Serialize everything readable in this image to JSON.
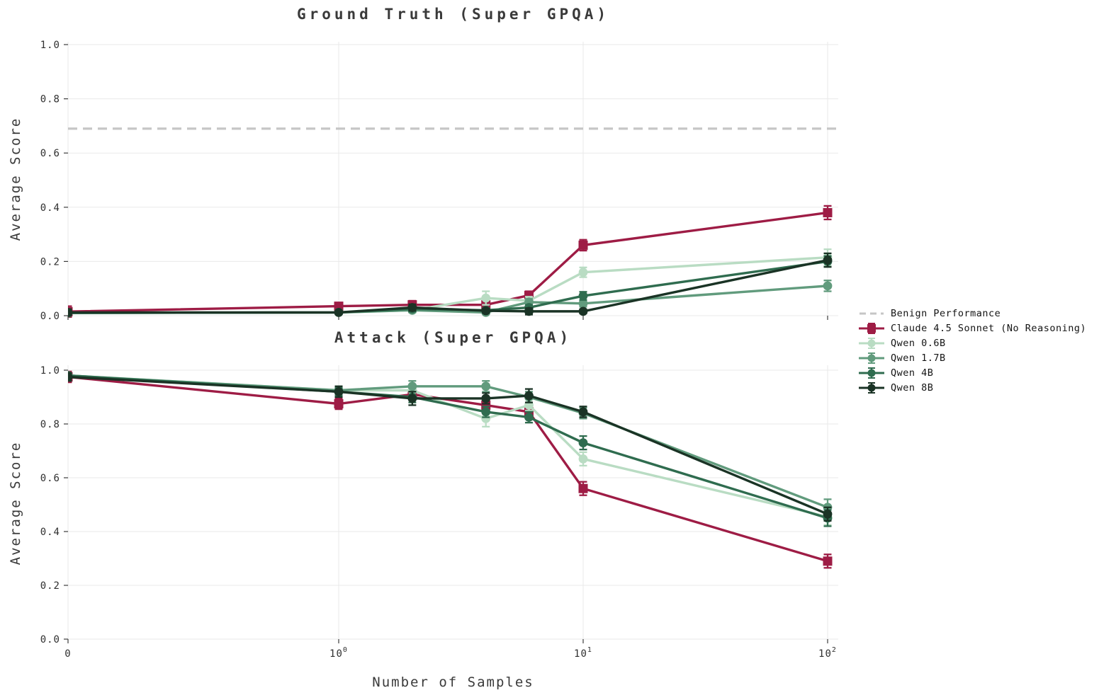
{
  "figure": {
    "xlabel": "Number of Samples",
    "background_color": "#ffffff",
    "grid_color": "#e9e9e9"
  },
  "legend": {
    "items": [
      {
        "label": "Benign Performance",
        "color": "#c6c6c6",
        "marker": "none",
        "dash": true
      },
      {
        "label": "Claude 4.5 Sonnet (No Reasoning)",
        "color": "#9e1c45",
        "marker": "square",
        "dash": false
      },
      {
        "label": "Qwen 0.6B",
        "color": "#b9dcc3",
        "marker": "circle",
        "dash": false
      },
      {
        "label": "Qwen 1.7B",
        "color": "#619b7d",
        "marker": "circle",
        "dash": false
      },
      {
        "label": "Qwen 4B",
        "color": "#2f6c4f",
        "marker": "circle",
        "dash": false
      },
      {
        "label": "Qwen 8B",
        "color": "#1a3325",
        "marker": "circle",
        "dash": false
      }
    ]
  },
  "chart_data": [
    {
      "id": "ground-truth",
      "type": "line",
      "title": "Ground Truth (Super GPQA)",
      "ylabel": "Average Score",
      "xscale": "log (0 shown at origin)",
      "ylim": [
        0.0,
        1.0
      ],
      "x": [
        0,
        1,
        2,
        4,
        6,
        10,
        100
      ],
      "xticks": [
        {
          "label": "0",
          "x": 0
        },
        {
          "label": "10",
          "exp": "0",
          "x": 1
        },
        {
          "label": "10",
          "exp": "1",
          "x": 10
        },
        {
          "label": "10",
          "exp": "2",
          "x": 100
        }
      ],
      "yticks": [
        {
          "label": "0.0",
          "v": 0.0
        },
        {
          "label": "0.2",
          "v": 0.2
        },
        {
          "label": "0.4",
          "v": 0.4
        },
        {
          "label": "0.6",
          "v": 0.6
        },
        {
          "label": "0.8",
          "v": 0.8
        },
        {
          "label": "1.0",
          "v": 1.0
        }
      ],
      "benign_line": 0.69,
      "series": [
        {
          "name": "Claude 4.5 Sonnet (No Reasoning)",
          "color": "#9e1c45",
          "marker": "square",
          "values": [
            0.015,
            0.035,
            0.04,
            0.04,
            0.075,
            0.26,
            0.38
          ],
          "errors": [
            0.02,
            0.012,
            0.015,
            0.012,
            0.015,
            0.02,
            0.025
          ]
        },
        {
          "name": "Qwen 0.6B",
          "color": "#b9dcc3",
          "marker": "circle",
          "values": [
            0.01,
            0.012,
            0.02,
            0.065,
            0.055,
            0.16,
            0.215
          ],
          "errors": [
            0.005,
            0.005,
            0.008,
            0.025,
            0.015,
            0.018,
            0.03
          ]
        },
        {
          "name": "Qwen 1.7B",
          "color": "#619b7d",
          "marker": "circle",
          "values": [
            0.01,
            0.012,
            0.02,
            0.012,
            0.05,
            0.045,
            0.11
          ],
          "errors": [
            0.005,
            0.005,
            0.008,
            0.006,
            0.012,
            0.012,
            0.02
          ]
        },
        {
          "name": "Qwen 4B",
          "color": "#2f6c4f",
          "marker": "circle",
          "values": [
            0.01,
            0.012,
            0.025,
            0.02,
            0.03,
            0.073,
            0.2
          ],
          "errors": [
            0.005,
            0.005,
            0.01,
            0.008,
            0.01,
            0.015,
            0.02
          ]
        },
        {
          "name": "Qwen 8B",
          "color": "#1a3325",
          "marker": "circle",
          "values": [
            0.012,
            0.012,
            0.03,
            0.018,
            0.016,
            0.016,
            0.205
          ],
          "errors": [
            0.012,
            0.005,
            0.012,
            0.008,
            0.012,
            0.008,
            0.025
          ]
        }
      ]
    },
    {
      "id": "attack",
      "type": "line",
      "title": "Attack (Super GPQA)",
      "ylabel": "Average Score",
      "xscale": "log (0 shown at origin)",
      "ylim": [
        0.0,
        1.0
      ],
      "x": [
        0,
        1,
        2,
        4,
        6,
        10,
        100
      ],
      "xticks": [
        {
          "label": "0",
          "x": 0
        },
        {
          "label": "10",
          "exp": "0",
          "x": 1
        },
        {
          "label": "10",
          "exp": "1",
          "x": 10
        },
        {
          "label": "10",
          "exp": "2",
          "x": 100
        }
      ],
      "yticks": [
        {
          "label": "0.0",
          "v": 0.0
        },
        {
          "label": "0.2",
          "v": 0.2
        },
        {
          "label": "0.4",
          "v": 0.4
        },
        {
          "label": "0.6",
          "v": 0.6
        },
        {
          "label": "0.8",
          "v": 0.8
        },
        {
          "label": "1.0",
          "v": 1.0
        }
      ],
      "series": [
        {
          "name": "Claude 4.5 Sonnet (No Reasoning)",
          "color": "#9e1c45",
          "marker": "square",
          "values": [
            0.975,
            0.875,
            0.91,
            0.87,
            0.845,
            0.56,
            0.29
          ],
          "errors": [
            0.02,
            0.02,
            0.02,
            0.02,
            0.02,
            0.025,
            0.025
          ]
        },
        {
          "name": "Qwen 0.6B",
          "color": "#b9dcc3",
          "marker": "circle",
          "values": [
            0.98,
            0.925,
            0.925,
            0.82,
            0.87,
            0.67,
            0.455
          ],
          "errors": [
            0.01,
            0.015,
            0.02,
            0.03,
            0.02,
            0.025,
            0.03
          ]
        },
        {
          "name": "Qwen 1.7B",
          "color": "#619b7d",
          "marker": "circle",
          "values": [
            0.98,
            0.925,
            0.94,
            0.94,
            0.9,
            0.84,
            0.49
          ],
          "errors": [
            0.01,
            0.015,
            0.02,
            0.02,
            0.02,
            0.02,
            0.03
          ]
        },
        {
          "name": "Qwen 4B",
          "color": "#2f6c4f",
          "marker": "circle",
          "values": [
            0.98,
            0.92,
            0.9,
            0.845,
            0.825,
            0.73,
            0.45
          ],
          "errors": [
            0.01,
            0.015,
            0.02,
            0.02,
            0.02,
            0.025,
            0.03
          ]
        },
        {
          "name": "Qwen 8B",
          "color": "#1a3325",
          "marker": "circle",
          "values": [
            0.975,
            0.92,
            0.895,
            0.895,
            0.905,
            0.845,
            0.465
          ],
          "errors": [
            0.015,
            0.02,
            0.025,
            0.02,
            0.025,
            0.02,
            0.025
          ]
        }
      ]
    }
  ]
}
